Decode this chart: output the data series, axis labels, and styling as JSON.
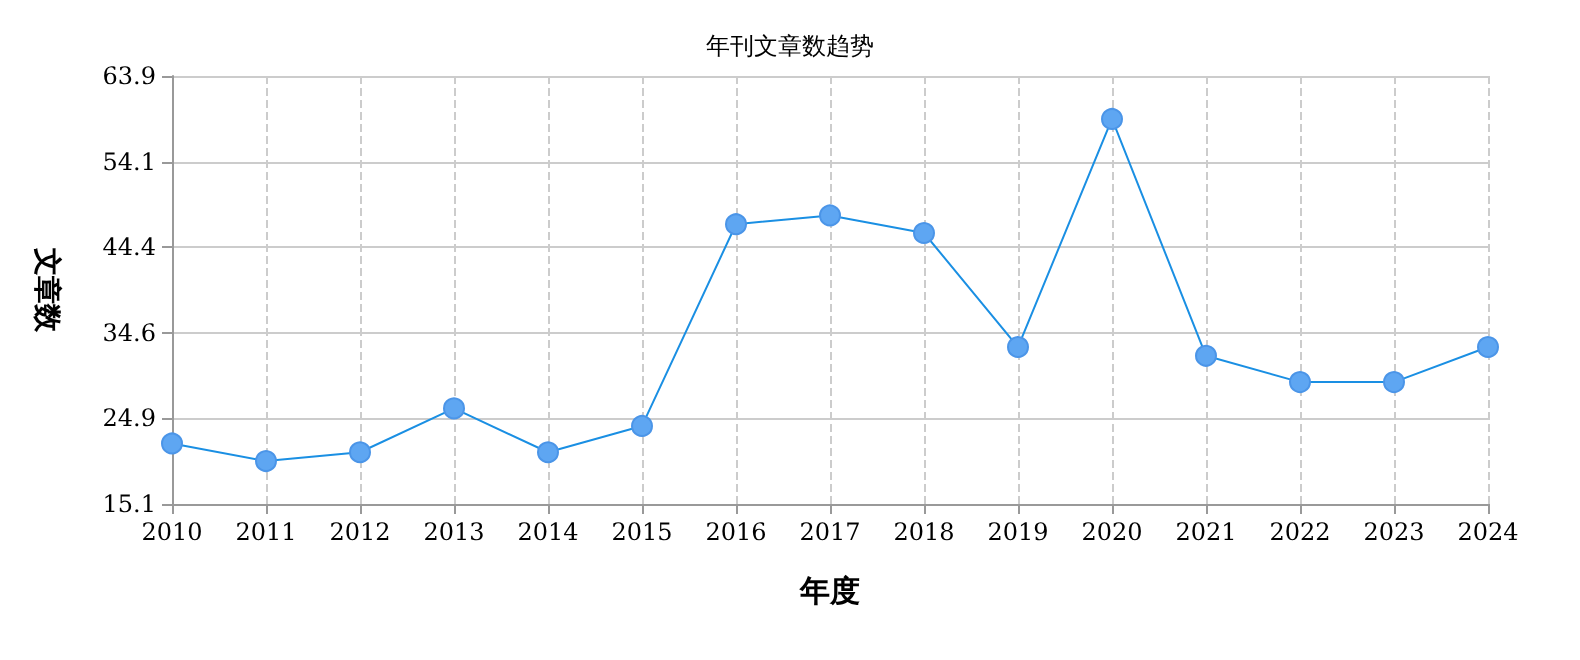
{
  "chart_data": {
    "type": "line",
    "title": "年刊文章数趋势",
    "xlabel": "年度",
    "ylabel": "文章数",
    "categories": [
      "2010",
      "2011",
      "2012",
      "2013",
      "2014",
      "2015",
      "2016",
      "2017",
      "2018",
      "2019",
      "2020",
      "2021",
      "2022",
      "2023",
      "2024"
    ],
    "series": [
      {
        "color": "#1a8fe3",
        "values": [
          22,
          20,
          21,
          26,
          21,
          24,
          47,
          48,
          46,
          33,
          59,
          32,
          29,
          29,
          33
        ]
      }
    ],
    "ylim": [
      15.1,
      63.9
    ],
    "yticks": [
      15.1,
      24.9,
      34.6,
      44.4,
      54.1,
      63.9
    ],
    "grid": true,
    "marker": "circle",
    "line_style": "solid"
  }
}
